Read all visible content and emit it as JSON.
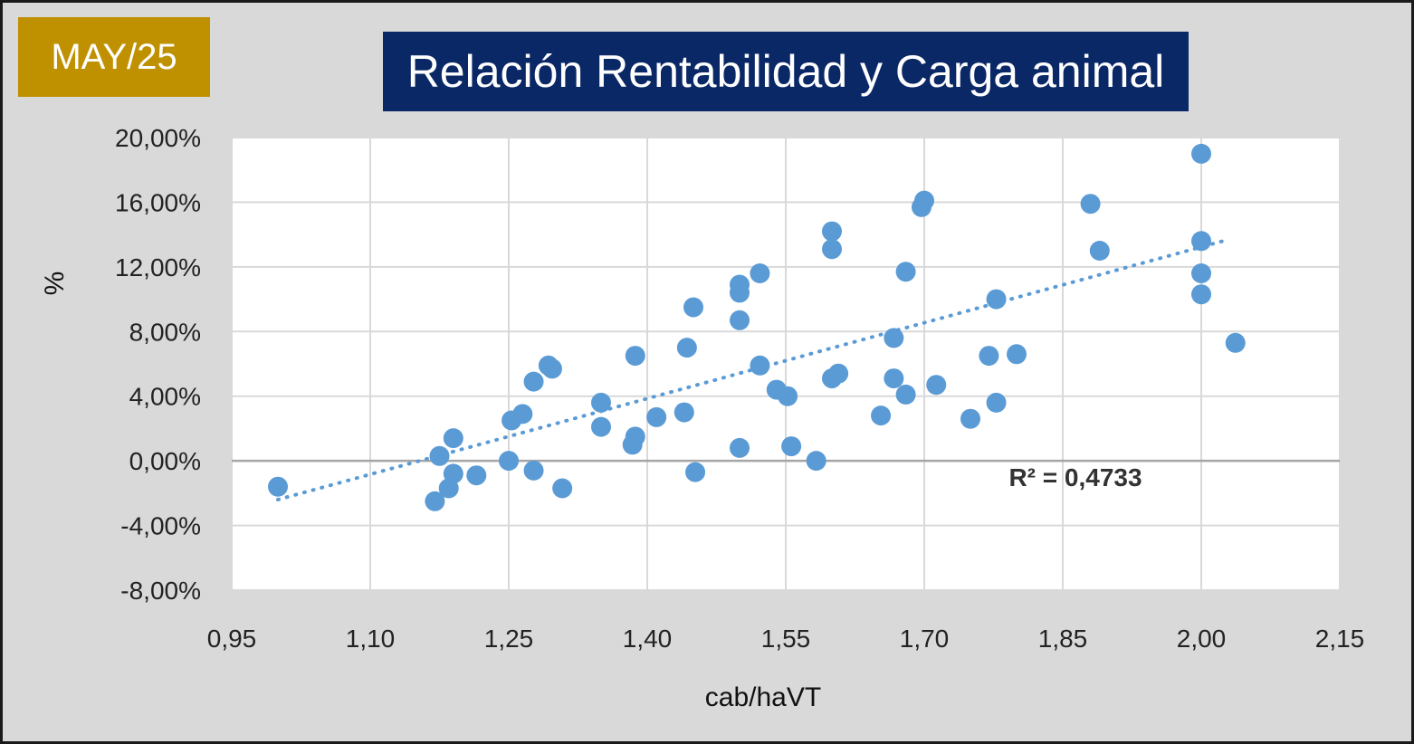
{
  "badge": "MAY/25",
  "chart_data": {
    "type": "scatter",
    "title": "Relación Rentabilidad y Carga animal",
    "xlabel": "cab/haVT",
    "ylabel": "%",
    "xlim": [
      0.95,
      2.15
    ],
    "ylim": [
      -8,
      20
    ],
    "x_ticks": [
      "0,95",
      "1,10",
      "1,25",
      "1,40",
      "1,55",
      "1,70",
      "1,85",
      "2,00",
      "2,15"
    ],
    "y_ticks": [
      "20,00%",
      "16,00%",
      "12,00%",
      "8,00%",
      "4,00%",
      "0,00%",
      "-4,00%",
      "-8,00%"
    ],
    "grid": true,
    "series": [
      {
        "color": "#5b9bd5",
        "points": [
          [
            1.0,
            -1.6
          ],
          [
            1.17,
            -2.5
          ],
          [
            1.175,
            0.3
          ],
          [
            1.185,
            -1.7
          ],
          [
            1.19,
            -0.8
          ],
          [
            1.19,
            1.4
          ],
          [
            1.215,
            -0.9
          ],
          [
            1.25,
            0.0
          ],
          [
            1.253,
            2.5
          ],
          [
            1.265,
            2.9
          ],
          [
            1.277,
            4.9
          ],
          [
            1.277,
            -0.6
          ],
          [
            1.293,
            5.9
          ],
          [
            1.297,
            5.7
          ],
          [
            1.308,
            -1.7
          ],
          [
            1.35,
            3.6
          ],
          [
            1.35,
            2.1
          ],
          [
            1.384,
            1.0
          ],
          [
            1.387,
            1.5
          ],
          [
            1.387,
            6.5
          ],
          [
            1.41,
            2.7
          ],
          [
            1.44,
            3.0
          ],
          [
            1.443,
            7.0
          ],
          [
            1.45,
            9.5
          ],
          [
            1.452,
            -0.7
          ],
          [
            1.5,
            0.8
          ],
          [
            1.5,
            8.7
          ],
          [
            1.5,
            10.9
          ],
          [
            1.5,
            10.4
          ],
          [
            1.522,
            11.6
          ],
          [
            1.522,
            5.9
          ],
          [
            1.54,
            4.4
          ],
          [
            1.552,
            4.0
          ],
          [
            1.556,
            0.9
          ],
          [
            1.583,
            0.0
          ],
          [
            1.6,
            14.2
          ],
          [
            1.6,
            13.1
          ],
          [
            1.6,
            5.1
          ],
          [
            1.607,
            5.4
          ],
          [
            1.653,
            2.8
          ],
          [
            1.667,
            7.6
          ],
          [
            1.667,
            5.1
          ],
          [
            1.68,
            4.1
          ],
          [
            1.68,
            11.7
          ],
          [
            1.697,
            15.7
          ],
          [
            1.7,
            16.1
          ],
          [
            1.713,
            4.7
          ],
          [
            1.75,
            2.6
          ],
          [
            1.77,
            6.5
          ],
          [
            1.778,
            10.0
          ],
          [
            1.778,
            3.6
          ],
          [
            1.8,
            6.6
          ],
          [
            1.88,
            15.9
          ],
          [
            1.89,
            13.0
          ],
          [
            2.0,
            19.0
          ],
          [
            2.0,
            13.6
          ],
          [
            2.0,
            11.6
          ],
          [
            2.0,
            10.3
          ],
          [
            2.037,
            7.3
          ]
        ]
      }
    ],
    "trendline": {
      "type": "linear",
      "style": "dotted",
      "x_range": [
        1.0,
        2.03
      ],
      "y_range": [
        -2.4,
        13.7
      ],
      "annotation": "R² = 0,4733"
    }
  }
}
